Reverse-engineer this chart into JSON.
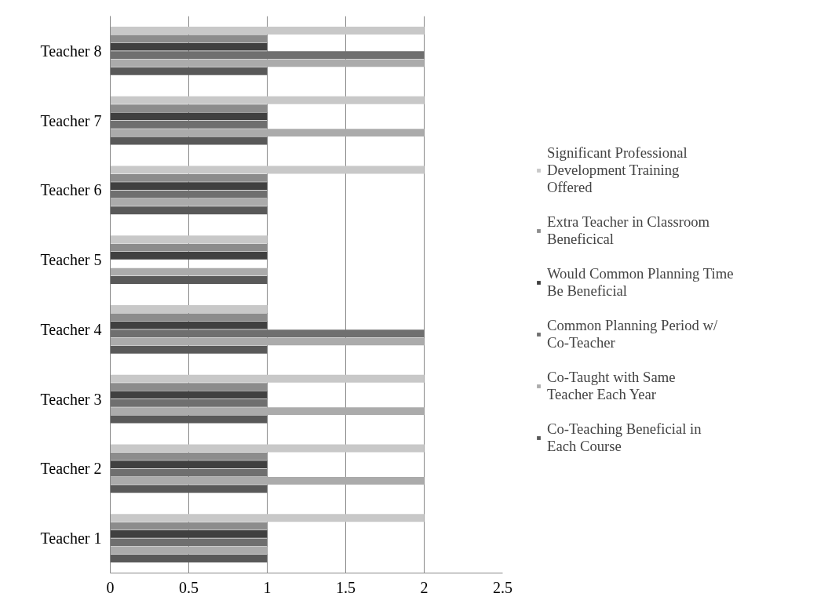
{
  "chart_data": {
    "type": "bar",
    "orientation": "horizontal",
    "categories": [
      "Teacher 8",
      "Teacher 7",
      "Teacher 6",
      "Teacher 5",
      "Teacher 4",
      "Teacher 3",
      "Teacher 2",
      "Teacher 1"
    ],
    "series": [
      {
        "name": "Co-Teaching Beneficial in Each Course",
        "color": "#595959",
        "values": [
          1,
          1,
          1,
          1,
          1,
          1,
          1,
          1
        ]
      },
      {
        "name": "Co-Taught with Same Teacher Each Year",
        "color": "#ababab",
        "values": [
          2,
          2,
          1,
          1,
          2,
          2,
          2,
          1
        ]
      },
      {
        "name": "Common Planning Period w/ Co-Teacher",
        "color": "#6f6f6f",
        "values": [
          2,
          1,
          1,
          0,
          2,
          1,
          1,
          1
        ]
      },
      {
        "name": "Would Common Planning Time Be Beneficial",
        "color": "#404040",
        "values": [
          1,
          1,
          1,
          1,
          1,
          1,
          1,
          1
        ]
      },
      {
        "name": "Extra Teacher in Classroom Beneficical",
        "color": "#8c8c8c",
        "values": [
          1,
          1,
          1,
          1,
          1,
          1,
          1,
          1
        ]
      },
      {
        "name": "Significant Professional Development Training Offered",
        "color": "#c8c8c8",
        "values": [
          2,
          2,
          2,
          1,
          1,
          2,
          2,
          2
        ]
      }
    ],
    "xlim": [
      0,
      2.5
    ],
    "xticks": [
      0,
      0.5,
      1,
      1.5,
      2,
      2.5
    ],
    "grid": "x",
    "legend": "right"
  }
}
